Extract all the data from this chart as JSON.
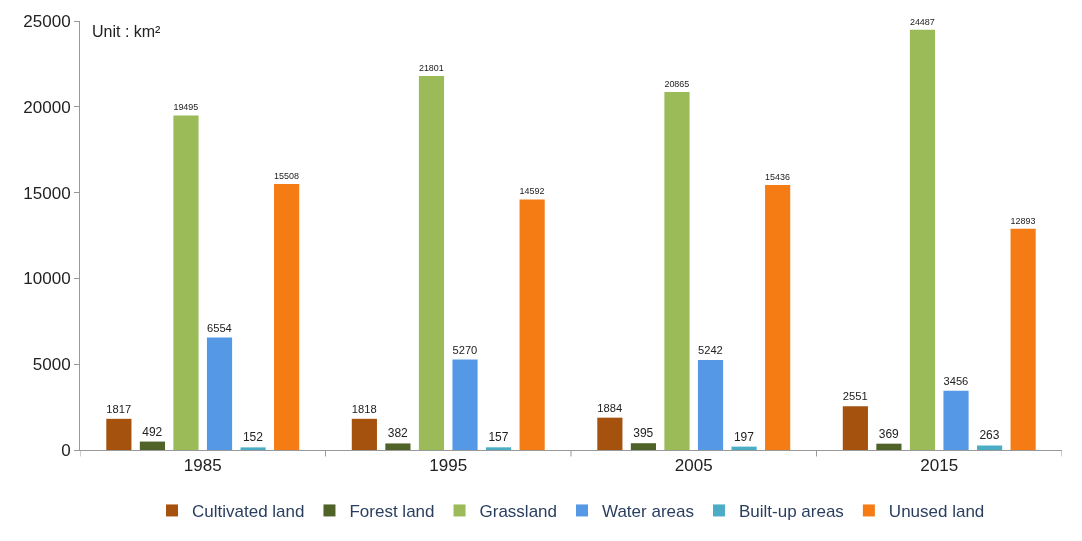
{
  "chart_data": {
    "type": "bar",
    "categories": [
      "1985",
      "1995",
      "2005",
      "2015"
    ],
    "series": [
      {
        "name": "Cultivated land",
        "color": "#a5520f",
        "values": [
          1817,
          1818,
          1884,
          2551
        ]
      },
      {
        "name": "Forest land",
        "color": "#4f6228",
        "values": [
          492,
          382,
          395,
          369
        ]
      },
      {
        "name": "Grassland",
        "color": "#9bbb59",
        "values": [
          19495,
          21801,
          20865,
          24487
        ]
      },
      {
        "name": "Water areas",
        "color": "#5599e6",
        "values": [
          6554,
          5270,
          5242,
          3456
        ]
      },
      {
        "name": "Built-up areas",
        "color": "#4bacc6",
        "values": [
          152,
          157,
          197,
          263
        ]
      },
      {
        "name": "Unused land",
        "color": "#f57b14",
        "values": [
          15508,
          14592,
          15436,
          12893
        ]
      }
    ],
    "annotations": [
      "Unit : km²"
    ],
    "ylim": [
      0,
      25000
    ],
    "yticks": [
      0,
      5000,
      10000,
      15000,
      20000,
      25000
    ],
    "data_labels": true,
    "grid": false,
    "legend": "bottom"
  }
}
